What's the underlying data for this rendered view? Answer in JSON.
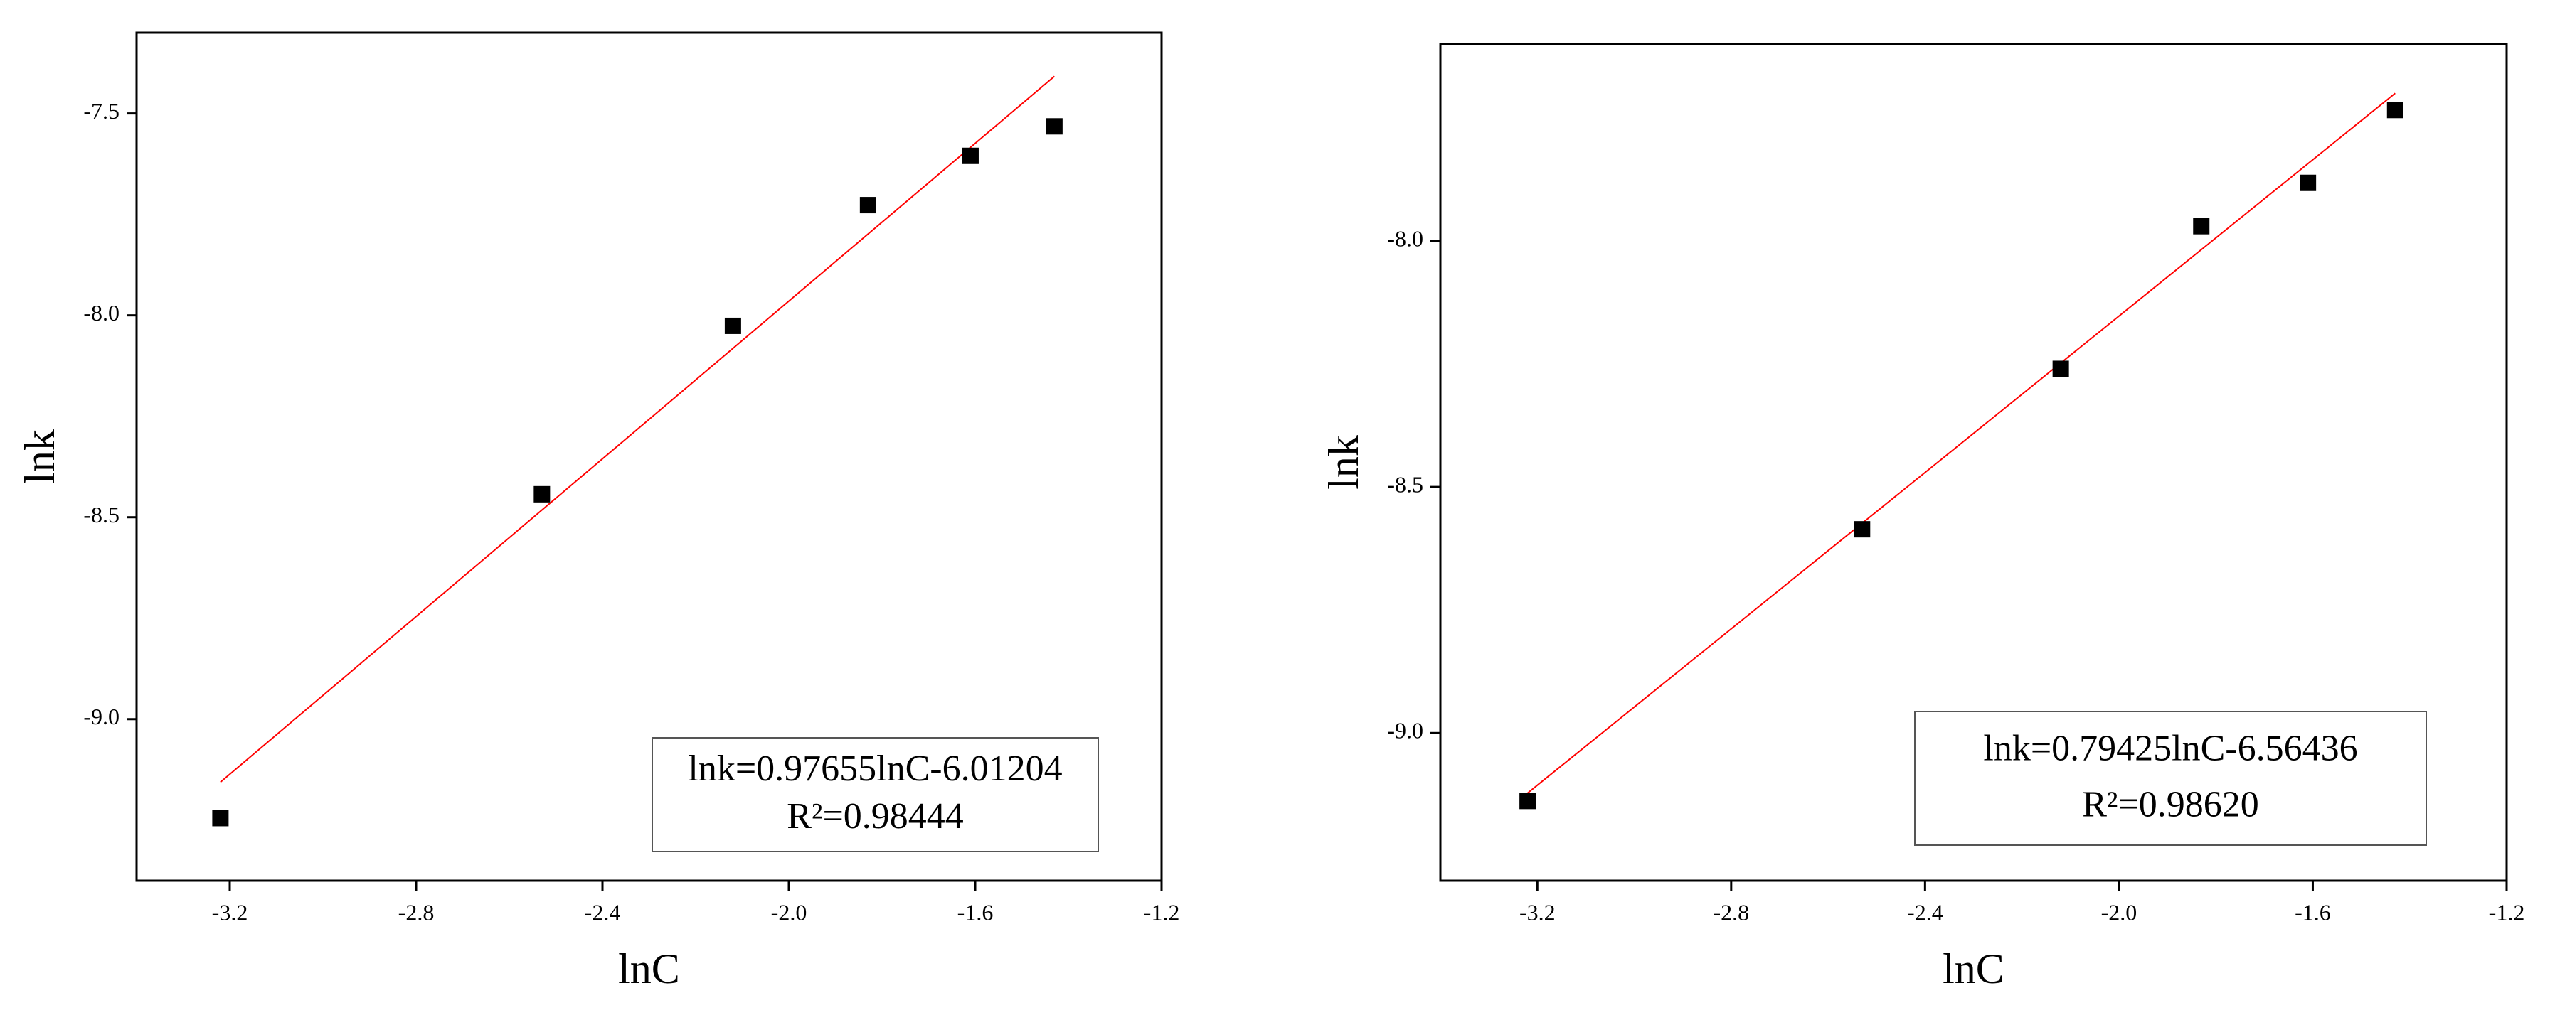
{
  "chart_data": [
    {
      "type": "scatter",
      "x_label": "lnC",
      "y_label": "lnk",
      "series": [
        {
          "color": "#000000",
          "x": [
            -3.22,
            -2.53,
            -2.12,
            -1.83,
            -1.61,
            -1.43
          ],
          "values": [
            -9.245,
            -8.443,
            -8.026,
            -7.727,
            -7.605,
            -7.532
          ]
        }
      ],
      "fit_line": {
        "color": "#ff0000",
        "x": [
          -3.22,
          -1.43
        ],
        "y": [
          -9.156,
          -7.408
        ]
      },
      "annotation": [
        "lnk=0.97655lnC-6.01204",
        "R²=0.98444"
      ],
      "xlim": [
        -3.4,
        -1.2
      ],
      "ylim": [
        -9.4,
        -7.3
      ],
      "xticks": [
        -3.2,
        -2.8,
        -2.4,
        {
          "value": -2,
          "label": "-2.0"
        },
        -1.6,
        -1.2
      ],
      "yticks": [
        -7.5,
        {
          "value": -8,
          "label": "-8.0"
        },
        -8.5,
        {
          "value": -9,
          "label": "-9.0"
        }
      ]
    },
    {
      "type": "scatter",
      "x_label": "lnC",
      "y_label": "lnk",
      "series": [
        {
          "color": "#000000",
          "x": [
            -3.22,
            -2.53,
            -2.12,
            -1.83,
            -1.61,
            -1.43
          ],
          "values": [
            -9.138,
            -8.586,
            -8.26,
            -7.97,
            -7.882,
            -7.734
          ]
        }
      ],
      "fit_line": {
        "color": "#ff0000",
        "x": [
          -3.22,
          -1.43
        ],
        "y": [
          -9.122,
          -7.7
        ]
      },
      "annotation": [
        "lnk=0.79425lnC-6.56436",
        "R²=0.98620"
      ],
      "xlim": [
        -3.4,
        -1.2
      ],
      "ylim": [
        -9.3,
        -7.6
      ],
      "xticks": [
        -3.2,
        -2.8,
        -2.4,
        {
          "value": -2,
          "label": "-2.0"
        },
        -1.6,
        -1.2
      ],
      "yticks": [
        {
          "value": -8,
          "label": "-8.0"
        },
        -8.5,
        {
          "value": -9,
          "label": "-9.0"
        }
      ]
    }
  ]
}
